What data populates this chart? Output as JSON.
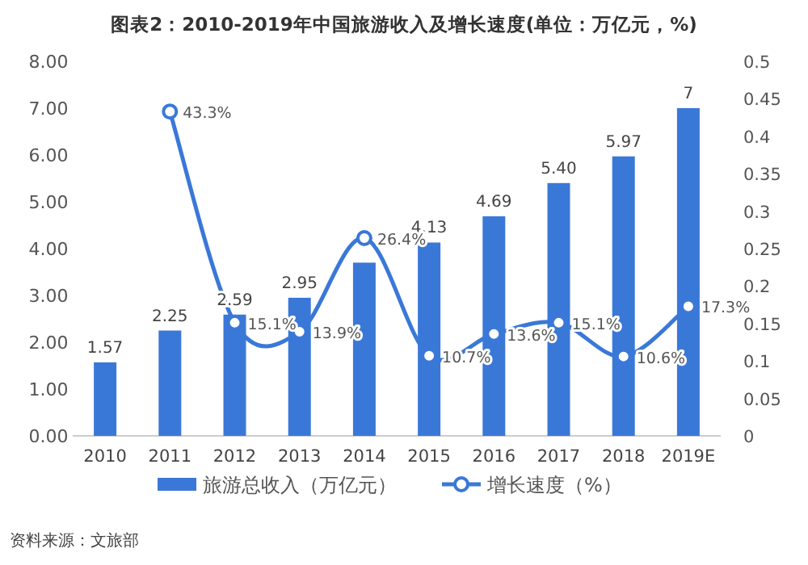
{
  "chart_data": {
    "type": "bar",
    "title": "图表2：2010-2019年中国旅游收入及增长速度(单位：万亿元，%)",
    "categories": [
      "2010",
      "2011",
      "2012",
      "2013",
      "2014",
      "2015",
      "2016",
      "2017",
      "2018",
      "2019E"
    ],
    "series": [
      {
        "name": "旅游总收入（万亿元）",
        "color": "#3a78d8",
        "values": [
          1.57,
          2.25,
          2.59,
          2.95,
          3.7,
          4.13,
          4.69,
          5.4,
          5.97,
          7
        ],
        "value_labels": [
          "1.57",
          "2.25",
          "2.59",
          "2.95",
          null,
          "4.13",
          "4.69",
          "5.40",
          "5.97",
          "7"
        ]
      },
      {
        "name": "增长速度（%）",
        "type": "line",
        "axis": "y2",
        "color": "#3a78d8",
        "marker": "circle",
        "values": [
          null,
          0.433,
          0.151,
          0.139,
          0.264,
          0.107,
          0.136,
          0.151,
          0.106,
          0.173
        ],
        "value_labels": [
          null,
          "43.3%",
          "15.1%",
          "13.9%",
          "26.4%",
          "10.7%",
          "13.6%",
          "15.1%",
          "10.6%",
          "17.3%"
        ]
      }
    ],
    "ylim": [
      0,
      8
    ],
    "yticks": [
      {
        "value": 0,
        "label": "0.00"
      },
      {
        "value": 1,
        "label": "1.00"
      },
      {
        "value": 2,
        "label": "2.00"
      },
      {
        "value": 3,
        "label": "3.00"
      },
      {
        "value": 4,
        "label": "4.00"
      },
      {
        "value": 5,
        "label": "5.00"
      },
      {
        "value": 6,
        "label": "6.00"
      },
      {
        "value": 7,
        "label": "7.00"
      },
      {
        "value": 8,
        "label": "8.00"
      }
    ],
    "y2lim": [
      0,
      0.5
    ],
    "y2ticks": [
      0,
      0.05,
      0.1,
      0.15,
      0.2,
      0.25,
      0.3,
      0.35,
      0.4,
      0.45,
      0.5
    ],
    "legend": "bottom",
    "annotations": [
      "资料来源：文旅部"
    ]
  }
}
